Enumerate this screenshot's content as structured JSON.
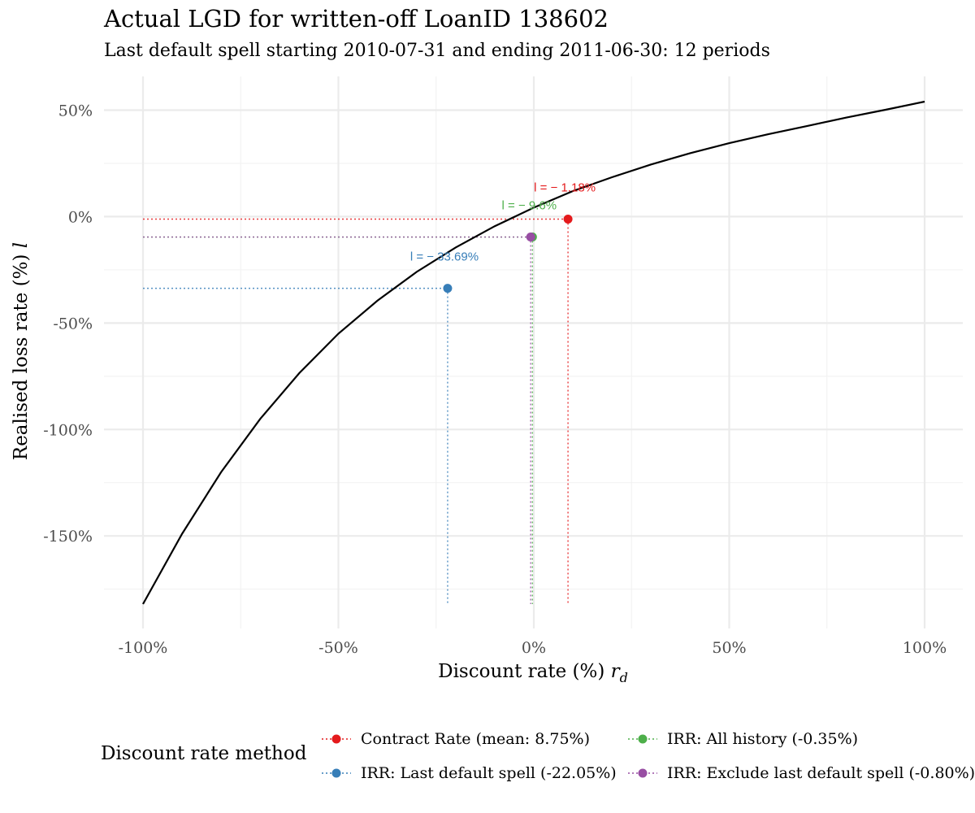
{
  "title": "Actual LGD for written-off LoanID 138602",
  "subtitle": "Last default spell starting 2010-07-31 and ending 2011-06-30: 12 periods",
  "chart_data": {
    "type": "line",
    "xlabel": "Discount rate (%)",
    "xlabel_symbol": "r",
    "xlabel_subscript": "d",
    "ylabel": "Realised loss rate (%)",
    "ylabel_symbol": "l",
    "xlim": [
      -100,
      100
    ],
    "ylim": [
      -182,
      54
    ],
    "x_ticks": [
      -100,
      -50,
      0,
      50,
      100
    ],
    "x_tick_labels": [
      "-100%",
      "-50%",
      "0%",
      "50%",
      "100%"
    ],
    "y_ticks": [
      50,
      0,
      -50,
      -100,
      -150
    ],
    "y_tick_labels": [
      "50%",
      "0%",
      "-50%",
      "-100%",
      "-150%"
    ],
    "grid": true,
    "curve": {
      "x": [
        -100,
        -90,
        -80,
        -70,
        -60,
        -50,
        -40,
        -30,
        -20,
        -10,
        0,
        10,
        20,
        30,
        40,
        50,
        60,
        70,
        80,
        90,
        100
      ],
      "y": [
        -182,
        -149,
        -120,
        -95,
        -73.5,
        -55,
        -39.5,
        -26,
        -14.5,
        -4.5,
        4.2,
        12,
        18.5,
        24.5,
        29.8,
        34.5,
        38.7,
        42.6,
        46.5,
        50.2,
        54.0
      ]
    },
    "points": [
      {
        "name": "Contract Rate (mean: 8.75%)",
        "x": 8.75,
        "y": -1.18,
        "label": "l = − 1.18%",
        "color": "#e41a1c"
      },
      {
        "name": "IRR: Last default spell (-22.05%)",
        "x": -22.05,
        "y": -33.69,
        "label": "l = − 33.69%",
        "color": "#377eb8"
      },
      {
        "name": "IRR: All history (-0.35%)",
        "x": -0.35,
        "y": -9.6,
        "label": "l = − 9.6%",
        "color": "#4daf4a"
      },
      {
        "name": "IRR: Exclude last default spell (-0.80%)",
        "x": -0.8,
        "y": -9.6,
        "label": "",
        "color": "#984ea3"
      }
    ],
    "legend": {
      "title": "Discount rate method",
      "position": "bottom"
    }
  }
}
